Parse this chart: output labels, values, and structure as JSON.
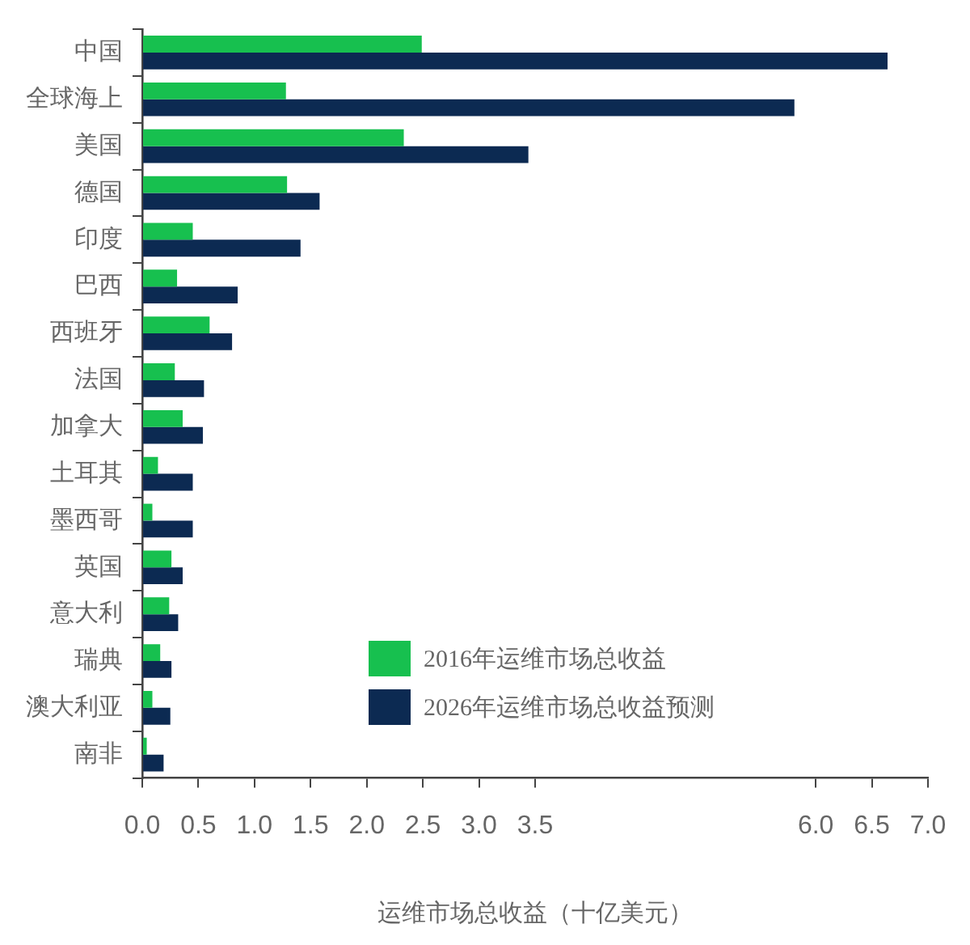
{
  "chart_data": {
    "type": "bar",
    "orientation": "horizontal",
    "xlabel": "运维市场总收益（十亿美元）",
    "categories": [
      "中国",
      "全球海上",
      "美国",
      "德国",
      "印度",
      "巴西",
      "西班牙",
      "法国",
      "加拿大",
      "土耳其",
      "墨西哥",
      "英国",
      "意大利",
      "瑞典",
      "澳大利亚",
      "南非"
    ],
    "series": [
      {
        "name": "2016年运维市场总收益",
        "color": "#17c04f",
        "values": [
          2.49,
          1.28,
          2.33,
          1.29,
          0.45,
          0.31,
          0.6,
          0.29,
          0.36,
          0.14,
          0.09,
          0.26,
          0.24,
          0.16,
          0.09,
          0.04
        ]
      },
      {
        "name": "2026年运维市场总收益预测",
        "color": "#0c2a52",
        "values": [
          6.64,
          5.81,
          3.44,
          1.58,
          1.41,
          0.85,
          0.8,
          0.55,
          0.54,
          0.45,
          0.45,
          0.36,
          0.32,
          0.26,
          0.25,
          0.19
        ]
      }
    ],
    "xlim": [
      0,
      7
    ],
    "xticks": [
      {
        "value": 0,
        "label": "0.0"
      },
      {
        "value": 0.5,
        "label": "0.5"
      },
      {
        "value": 1,
        "label": "1.0"
      },
      {
        "value": 1.5,
        "label": "1.5"
      },
      {
        "value": 2,
        "label": "2.0"
      },
      {
        "value": 2.5,
        "label": "2.5"
      },
      {
        "value": 3,
        "label": "3.0"
      },
      {
        "value": 3.5,
        "label": "3.5"
      },
      {
        "value": 6,
        "label": "6.0"
      },
      {
        "value": 6.5,
        "label": "6.5"
      },
      {
        "value": 7,
        "label": "7.0"
      }
    ],
    "grid": false,
    "legend": "bottom right"
  }
}
